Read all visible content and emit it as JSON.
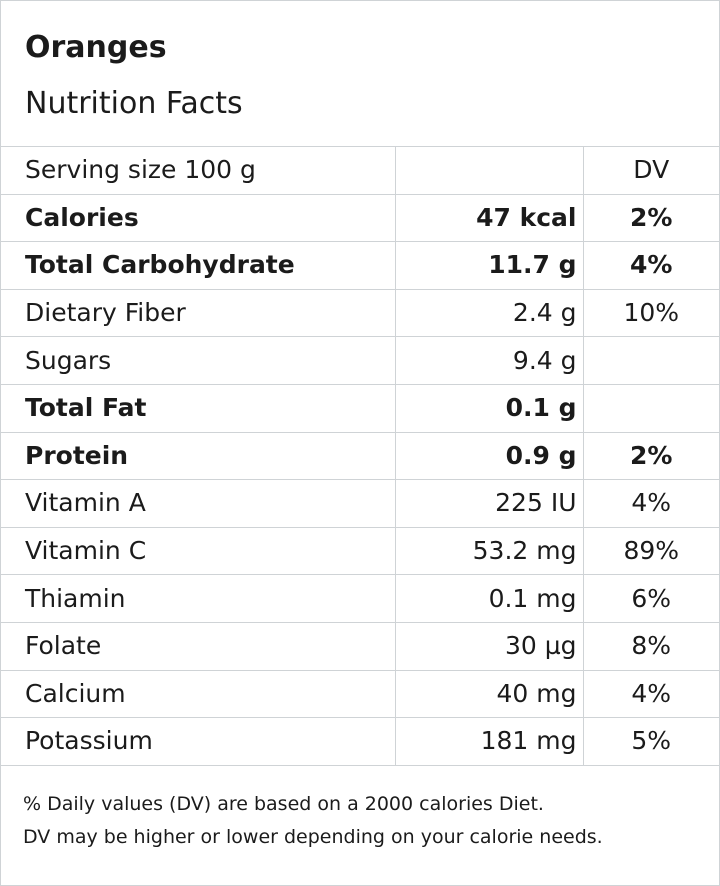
{
  "header": {
    "title": "Oranges",
    "subtitle": "Nutrition Facts"
  },
  "serving": {
    "label": "Serving size  100 g",
    "dv_header": "DV"
  },
  "rows": [
    {
      "name": "Calories",
      "amount": "47 kcal",
      "dv": "2%",
      "bold": true
    },
    {
      "name": "Total Carbohydrate",
      "amount": "11.7 g",
      "dv": "4%",
      "bold": true
    },
    {
      "name": "Dietary Fiber",
      "amount": "2.4 g",
      "dv": "10%",
      "bold": false
    },
    {
      "name": "Sugars",
      "amount": "9.4 g",
      "dv": "",
      "bold": false
    },
    {
      "name": "Total Fat",
      "amount": "0.1 g",
      "dv": "",
      "bold": true
    },
    {
      "name": "Protein",
      "amount": "0.9 g",
      "dv": "2%",
      "bold": true
    },
    {
      "name": "Vitamin A",
      "amount": "225 IU",
      "dv": "4%",
      "bold": false
    },
    {
      "name": "Vitamin C",
      "amount": "53.2 mg",
      "dv": "89%",
      "bold": false
    },
    {
      "name": "Thiamin",
      "amount": "0.1 mg",
      "dv": "6%",
      "bold": false
    },
    {
      "name": "Folate",
      "amount": "30 µg",
      "dv": "8%",
      "bold": false
    },
    {
      "name": "Calcium",
      "amount": "40 mg",
      "dv": "4%",
      "bold": false
    },
    {
      "name": "Potassium",
      "amount": "181 mg",
      "dv": "5%",
      "bold": false
    }
  ],
  "footer": {
    "line1": "% Daily values (DV) are based on a 2000 calories Diet.",
    "line2": "DV may be higher or lower depending on your calorie needs."
  }
}
